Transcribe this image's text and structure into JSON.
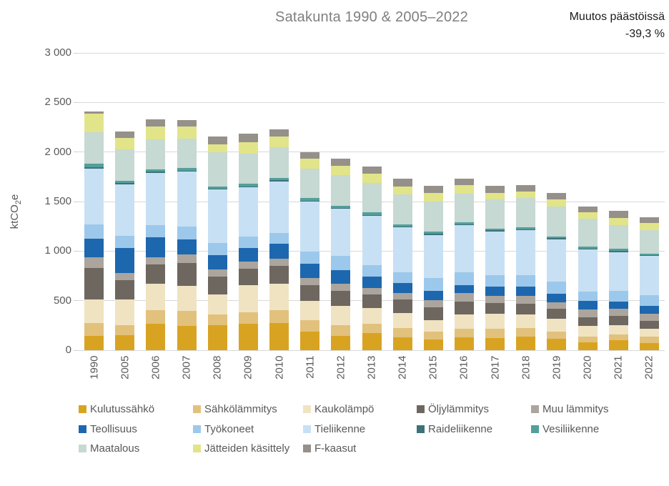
{
  "title": "Satakunta 1990 & 2005–2022",
  "annotation": {
    "label": "Muutos päästöissä",
    "value": "-39,3 %"
  },
  "y_axis": {
    "label_prefix": "ktCO",
    "label_sub": "2",
    "label_suffix": "e"
  },
  "chart_data": {
    "type": "bar",
    "stacked": true,
    "title": "Satakunta 1990 & 2005–2022",
    "xlabel": "",
    "ylabel": "ktCO2e",
    "ylim": [
      0,
      3000
    ],
    "grid": "horizontal",
    "legend_position": "bottom",
    "yticks": [
      {
        "value": 0,
        "label": "0"
      },
      {
        "value": 500,
        "label": "500"
      },
      {
        "value": 1000,
        "label": "1 000"
      },
      {
        "value": 1500,
        "label": "1 500"
      },
      {
        "value": 2000,
        "label": "2 000"
      },
      {
        "value": 2500,
        "label": "2 500"
      },
      {
        "value": 3000,
        "label": "3 000"
      }
    ],
    "categories": [
      "1990",
      "2005",
      "2006",
      "2007",
      "2008",
      "2009",
      "2010",
      "2011",
      "2012",
      "2013",
      "2014",
      "2015",
      "2016",
      "2017",
      "2018",
      "2019",
      "2020",
      "2021",
      "2022"
    ],
    "series": [
      {
        "name": "Kulutussähkö",
        "color": "#d9a322",
        "values": [
          145,
          150,
          270,
          245,
          250,
          270,
          275,
          190,
          145,
          175,
          130,
          110,
          130,
          125,
          140,
          115,
          80,
          100,
          75
        ]
      },
      {
        "name": "Sähkölämmitys",
        "color": "#e2c17c",
        "values": [
          130,
          100,
          135,
          150,
          110,
          110,
          130,
          110,
          110,
          95,
          95,
          75,
          85,
          95,
          85,
          75,
          55,
          60,
          60
        ]
      },
      {
        "name": "Kaukolämpö",
        "color": "#f0e3c2",
        "values": [
          240,
          265,
          265,
          255,
          205,
          275,
          265,
          200,
          190,
          155,
          150,
          120,
          145,
          145,
          135,
          130,
          110,
          95,
          80
        ]
      },
      {
        "name": "Öljylämmitys",
        "color": "#6e6760",
        "values": [
          315,
          195,
          195,
          230,
          180,
          170,
          180,
          155,
          155,
          140,
          135,
          130,
          130,
          110,
          110,
          95,
          85,
          90,
          80
        ]
      },
      {
        "name": "Muu lämmitys",
        "color": "#aba59e",
        "values": [
          105,
          70,
          70,
          85,
          70,
          70,
          70,
          75,
          70,
          65,
          70,
          70,
          85,
          70,
          75,
          70,
          80,
          75,
          70
        ]
      },
      {
        "name": "Teollisuus",
        "color": "#1d67ae",
        "values": [
          190,
          255,
          205,
          155,
          145,
          135,
          155,
          145,
          135,
          110,
          95,
          95,
          85,
          95,
          95,
          85,
          85,
          70,
          80
        ]
      },
      {
        "name": "Työkoneet",
        "color": "#9cc8eb",
        "values": [
          145,
          120,
          120,
          125,
          120,
          120,
          110,
          120,
          145,
          120,
          110,
          130,
          130,
          120,
          115,
          120,
          100,
          110,
          110
        ]
      },
      {
        "name": "Tieliikenne",
        "color": "#c8e0f4",
        "values": [
          560,
          520,
          530,
          555,
          540,
          495,
          520,
          505,
          475,
          495,
          455,
          435,
          470,
          440,
          455,
          430,
          420,
          390,
          395
        ]
      },
      {
        "name": "Raideliikenne",
        "color": "#3b7379",
        "values": [
          15,
          10,
          10,
          10,
          10,
          10,
          10,
          10,
          10,
          10,
          10,
          10,
          10,
          10,
          10,
          10,
          10,
          10,
          10
        ]
      },
      {
        "name": "Vesiliikenne",
        "color": "#539f9b",
        "values": [
          35,
          25,
          25,
          30,
          25,
          25,
          25,
          25,
          20,
          25,
          20,
          20,
          20,
          20,
          20,
          20,
          20,
          25,
          15
        ]
      },
      {
        "name": "Maatalous",
        "color": "#c6d9d2",
        "values": [
          320,
          315,
          300,
          295,
          340,
          305,
          310,
          300,
          310,
          300,
          300,
          305,
          290,
          290,
          300,
          300,
          280,
          240,
          240
        ]
      },
      {
        "name": "Jätteiden käsittely",
        "color": "#e2e489",
        "values": [
          190,
          120,
          135,
          120,
          85,
          115,
          105,
          95,
          95,
          95,
          85,
          90,
          85,
          70,
          60,
          70,
          65,
          70,
          70
        ]
      },
      {
        "name": "F-kaasut",
        "color": "#95908a",
        "values": [
          20,
          65,
          70,
          70,
          75,
          85,
          75,
          70,
          70,
          70,
          75,
          70,
          70,
          70,
          65,
          65,
          60,
          70,
          55
        ]
      }
    ]
  }
}
